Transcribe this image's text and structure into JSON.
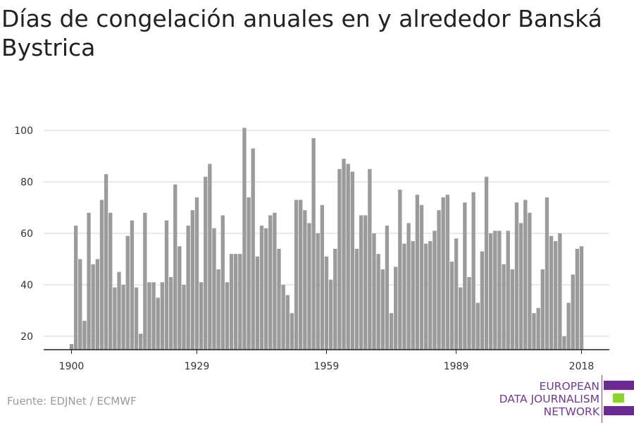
{
  "title": "Días de congelación anuales en y alrededor Banská Bystrica",
  "source": "Fuente: EDJNet / ECMWF",
  "logo": {
    "lines": [
      "EUROPEAN",
      "DATA JOURNALISM",
      "NETWORK"
    ],
    "colors": [
      "#6a2a91",
      "#8fd12e",
      "#6a2a91"
    ]
  },
  "colors": {
    "bar": "#9b9b9b",
    "grid": "#dddddd",
    "axis": "#222222"
  },
  "chart_data": {
    "type": "bar",
    "title": "Días de congelación anuales en y alrededor Banská Bystrica",
    "xlabel": "",
    "ylabel": "",
    "x": [
      1900,
      1901,
      1902,
      1903,
      1904,
      1905,
      1906,
      1907,
      1908,
      1909,
      1910,
      1911,
      1912,
      1913,
      1914,
      1915,
      1916,
      1917,
      1918,
      1919,
      1920,
      1921,
      1922,
      1923,
      1924,
      1925,
      1926,
      1927,
      1928,
      1929,
      1930,
      1931,
      1932,
      1933,
      1934,
      1935,
      1936,
      1937,
      1938,
      1939,
      1940,
      1941,
      1942,
      1943,
      1944,
      1945,
      1946,
      1947,
      1948,
      1949,
      1950,
      1951,
      1952,
      1953,
      1954,
      1955,
      1956,
      1957,
      1958,
      1959,
      1960,
      1961,
      1962,
      1963,
      1964,
      1965,
      1966,
      1967,
      1968,
      1969,
      1970,
      1971,
      1972,
      1973,
      1974,
      1975,
      1976,
      1977,
      1978,
      1979,
      1980,
      1981,
      1982,
      1983,
      1984,
      1985,
      1986,
      1987,
      1988,
      1989,
      1990,
      1991,
      1992,
      1993,
      1994,
      1995,
      1996,
      1997,
      1998,
      1999,
      2000,
      2001,
      2002,
      2003,
      2004,
      2005,
      2006,
      2007,
      2008,
      2009,
      2010,
      2011,
      2012,
      2013,
      2014,
      2015,
      2016,
      2017,
      2018
    ],
    "values": [
      17,
      63,
      50,
      26,
      68,
      48,
      50,
      73,
      83,
      68,
      39,
      45,
      40,
      59,
      65,
      39,
      21,
      68,
      41,
      41,
      35,
      41,
      65,
      43,
      79,
      55,
      40,
      63,
      69,
      74,
      41,
      82,
      87,
      62,
      46,
      67,
      41,
      52,
      52,
      52,
      101,
      74,
      93,
      51,
      63,
      62,
      67,
      68,
      54,
      40,
      36,
      29,
      73,
      73,
      69,
      64,
      97,
      60,
      71,
      51,
      42,
      54,
      85,
      89,
      87,
      84,
      54,
      67,
      67,
      85,
      60,
      52,
      46,
      63,
      29,
      47,
      77,
      56,
      64,
      57,
      75,
      71,
      56,
      57,
      61,
      69,
      74,
      75,
      49,
      58,
      39,
      72,
      43,
      76,
      33,
      53,
      82,
      60,
      61,
      61,
      48,
      61,
      46,
      72,
      64,
      73,
      68,
      29,
      31,
      46,
      74,
      59,
      57,
      60,
      20,
      33,
      44,
      54,
      55
    ],
    "y_ticks": [
      20,
      40,
      60,
      80,
      100
    ],
    "x_ticks": [
      1900,
      1929,
      1959,
      1989,
      2018
    ],
    "ylim": [
      15,
      103
    ],
    "grid": true,
    "legend": "none"
  }
}
